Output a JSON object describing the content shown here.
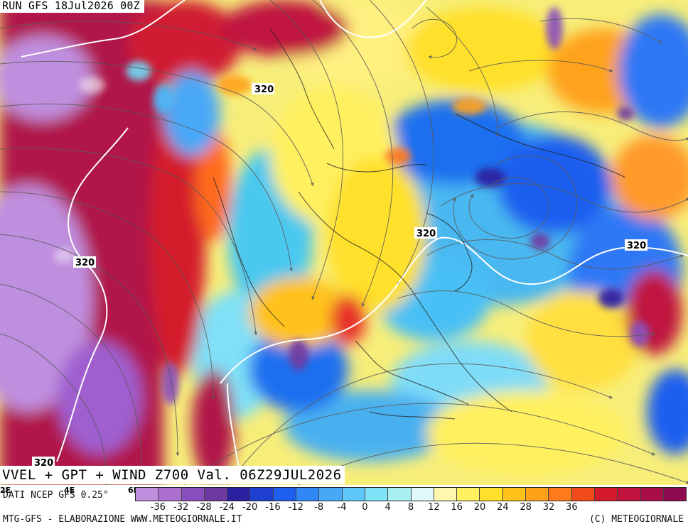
{
  "run_label": "RUN GFS 18Jul2026 00Z",
  "product_label": "VVEL + GPT + WIND Z700 Val. 06Z29JUL2026",
  "source_label": "DATI NCEP GFS 0.25°",
  "footer_left": "MTG-GFS - ELABORAZIONE WWW.METEOGIORNALE.IT",
  "footer_right": "(C) METEOGIORNALE",
  "longitude_ticks": [
    "2E",
    "4E",
    "6E"
  ],
  "contour_labels": [
    {
      "text": "320"
    },
    {
      "text": "320"
    },
    {
      "text": "320"
    },
    {
      "text": "320"
    },
    {
      "text": "320"
    }
  ],
  "colorbar": {
    "colors": [
      "#bf8fdf",
      "#aa6fcf",
      "#8a4fbf",
      "#6f3a9f",
      "#2a1f9f",
      "#1e3fcf",
      "#1f5fef",
      "#2f88f5",
      "#48a8f8",
      "#5fc8fb",
      "#7fe4f7",
      "#a8f0f0",
      "#e0f8f8",
      "#fff7b0",
      "#fff060",
      "#ffe02a",
      "#ffc21a",
      "#ffa21a",
      "#ff7a1a",
      "#f04a1a",
      "#d41a2a",
      "#c0143f",
      "#a80e48",
      "#900a50"
    ],
    "labels": [
      "-36",
      "-32",
      "-28",
      "-24",
      "-20",
      "-16",
      "-12",
      "-8",
      "-4",
      "0",
      "4",
      "8",
      "12",
      "16",
      "20",
      "24",
      "28",
      "32",
      "36"
    ]
  },
  "colors": {
    "purple": "#bf8fdf",
    "magenta_red": "#b0124a",
    "red": "#e8302a",
    "orange": "#ff9a2a",
    "yellow": "#fff060",
    "light_cyan": "#b8f0f0",
    "cyan": "#48c8f0",
    "blue": "#1f5fef",
    "dark_blue": "#2a1f9f",
    "contour_white": "#ffffff",
    "streamline_gray": "#5a5a5a",
    "coast_black": "#222222"
  }
}
